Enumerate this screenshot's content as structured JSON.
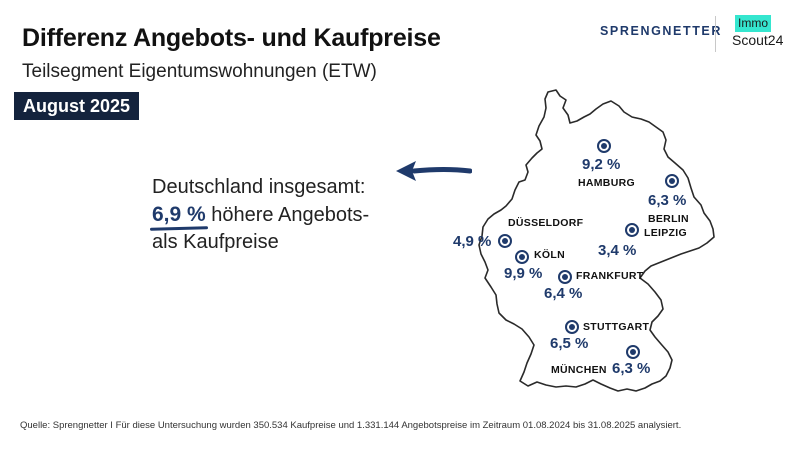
{
  "header": {
    "title": "Differenz Angebots- und Kaufpreise",
    "subtitle": "Teilsegment Eigentumswohnungen (ETW)",
    "date_badge": "August 2025"
  },
  "logos": {
    "sprengnetter": "SPRENGNETTER",
    "immo_top": "Immo",
    "immo_bottom": "Scout24"
  },
  "national": {
    "line1": "Deutschland insgesamt:",
    "value": "6,9 %",
    "line2_rest": " höhere Angebots-",
    "line3": "als Kaufpreise"
  },
  "cities": {
    "hamburg": {
      "name": "HAMBURG",
      "value": "9,2 %"
    },
    "berlin": {
      "name": "BERLIN",
      "value": "6,3 %"
    },
    "leipzig": {
      "name": "LEIPZIG",
      "value": "3,4 %"
    },
    "duesseldorf": {
      "name": "DÜSSELDORF",
      "value": "4,9 %"
    },
    "koeln": {
      "name": "KÖLN",
      "value": "9,9 %"
    },
    "frankfurt": {
      "name": "FRANKFURT",
      "value": "6,4 %"
    },
    "stuttgart": {
      "name": "STUTTGART",
      "value": "6,5 %"
    },
    "muenchen": {
      "name": "MÜNCHEN",
      "value": "6,3 %"
    }
  },
  "source": "Quelle: Sprengnetter I Für diese Untersuchung wurden 350.534 Kaufpreise und 1.331.144 Angebotspreise im Zeitraum 01.08.2024 bis 31.08.2025 analysiert.",
  "colors": {
    "accent": "#1f3a6b",
    "badge": "#14233d",
    "immo": "#35e6cf"
  }
}
